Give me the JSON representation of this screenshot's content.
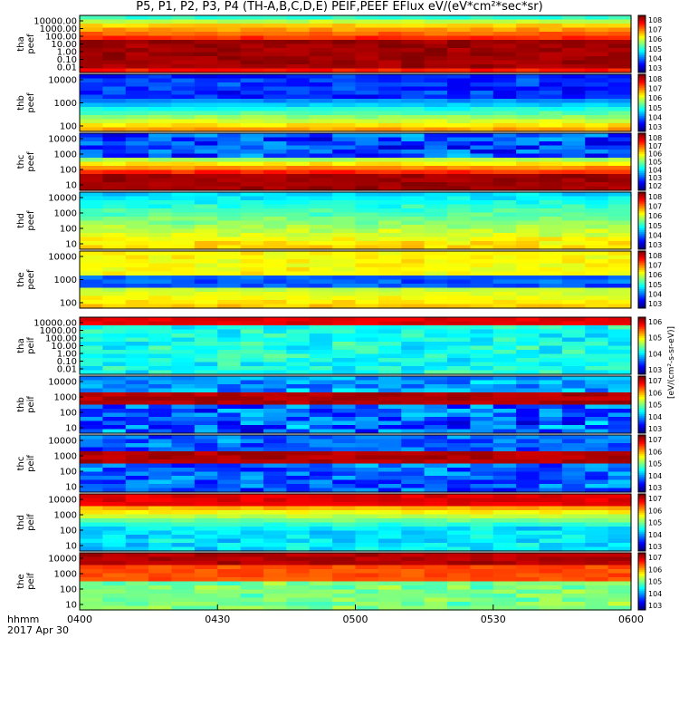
{
  "title": "P5, P1, P2, P3, P4 (TH-A,B,C,D,E) PEIF,PEEF EFlux eV/(eV*cm²*sec*sr)",
  "time_axis": {
    "label_line1": "hhmm",
    "label_line2": "2017 Apr 30",
    "ticks": [
      "0400",
      "0430",
      "0500",
      "0530",
      "0600"
    ],
    "tick_minutes": [
      0,
      30,
      60,
      90,
      120
    ]
  },
  "colorbar_unit_label": "[eV/(cm²-s-sr-eV)]",
  "colorbar_unit_label_wrapped": "eV/(cm^2-sec-sr-eV)",
  "colors": {
    "red": "#e60000",
    "yellow": "#ffff00",
    "white": "#ffffff"
  },
  "chart_data": [
    {
      "type": "heatmap",
      "ylabel": "tha\npeef",
      "scale": "log",
      "yticks": [
        "10000.00",
        "1000.00",
        "100.00",
        "10.00",
        "1.00",
        "0.10",
        "0.01"
      ],
      "cbticks": [
        "10^8",
        "10^7",
        "10^6",
        "10^5",
        "10^4",
        "10^3"
      ]
    },
    {
      "type": "heatmap",
      "ylabel": "thb\npeef",
      "scale": "log",
      "yticks": [
        "10000",
        "1000",
        "100"
      ],
      "cbticks": [
        "10^8",
        "10^7",
        "10^6",
        "10^5",
        "10^4",
        "10^3"
      ]
    },
    {
      "type": "heatmap",
      "ylabel": "thc\npeef",
      "scale": "log",
      "yticks": [
        "10000",
        "1000",
        "100",
        "10"
      ],
      "cbticks": [
        "10^8",
        "10^7",
        "10^6",
        "10^5",
        "10^4",
        "10^3",
        "10^2"
      ]
    },
    {
      "type": "heatmap",
      "ylabel": "thd\npeef",
      "scale": "log",
      "yticks": [
        "10000",
        "1000",
        "100",
        "10"
      ],
      "cbticks": [
        "10^8",
        "10^7",
        "10^6",
        "10^5",
        "10^4",
        "10^3"
      ]
    },
    {
      "type": "heatmap",
      "ylabel": "the\npeef",
      "scale": "log",
      "yticks": [
        "10000",
        "1000",
        "100"
      ],
      "cbticks": [
        "10^8",
        "10^7",
        "10^6",
        "10^5",
        "10^4",
        "10^3"
      ]
    },
    {
      "type": "heatmap",
      "ylabel": "tha\npeif",
      "scale": "log",
      "yticks": [
        "10000.00",
        "1000.00",
        "100.00",
        "10.00",
        "1.00",
        "0.10",
        "0.01"
      ],
      "cbticks": [
        "10^6",
        "10^5",
        "10^4",
        "10^3"
      ]
    },
    {
      "type": "heatmap",
      "ylabel": "thb\npeif",
      "scale": "log",
      "yticks": [
        "10000",
        "1000",
        "100",
        "10"
      ],
      "cbticks": [
        "10^7",
        "10^6",
        "10^5",
        "10^4",
        "10^3"
      ]
    },
    {
      "type": "heatmap",
      "ylabel": "thc\npeif",
      "scale": "log",
      "yticks": [
        "10000",
        "1000",
        "100",
        "10"
      ],
      "cbticks": [
        "10^7",
        "10^6",
        "10^5",
        "10^4",
        "10^3"
      ]
    },
    {
      "type": "heatmap",
      "ylabel": "thd\npeif",
      "scale": "log",
      "yticks": [
        "10000",
        "1000",
        "100",
        "10"
      ],
      "cbticks": [
        "10^7",
        "10^6",
        "10^5",
        "10^4",
        "10^3"
      ]
    },
    {
      "type": "heatmap",
      "ylabel": "the\npeif",
      "scale": "log",
      "yticks": [
        "10000",
        "1000",
        "100",
        "10"
      ],
      "cbticks": [
        "10^7",
        "10^6",
        "10^5",
        "10^4",
        "10^3"
      ]
    }
  ]
}
